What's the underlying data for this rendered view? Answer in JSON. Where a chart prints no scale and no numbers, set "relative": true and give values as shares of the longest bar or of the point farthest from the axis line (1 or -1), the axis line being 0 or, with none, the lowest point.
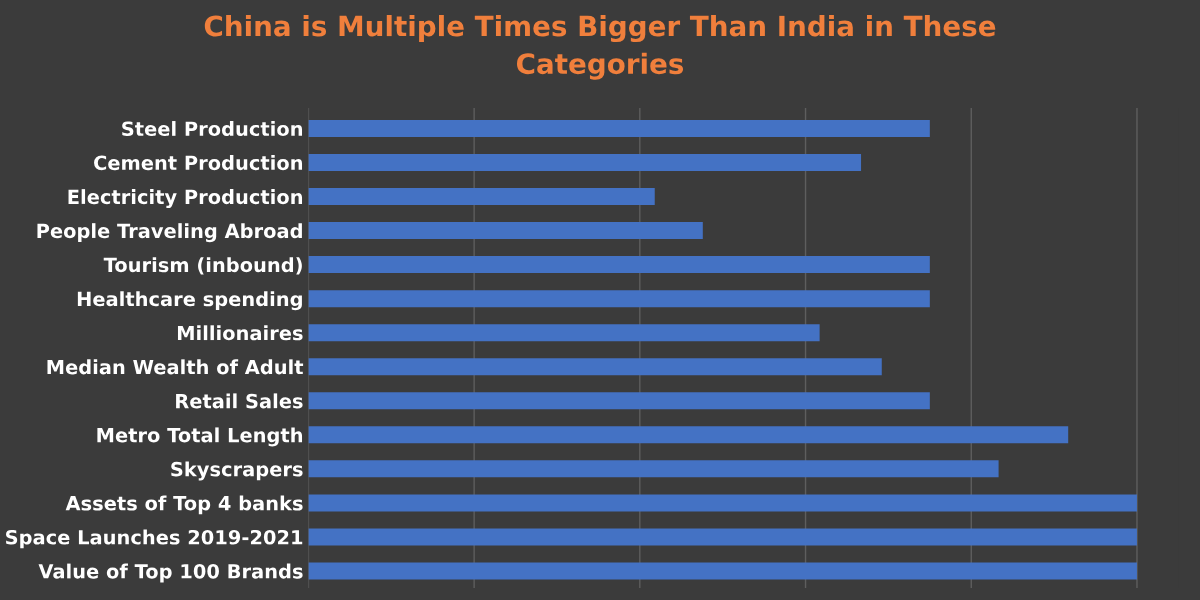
{
  "chart_data": {
    "type": "bar",
    "orientation": "horizontal",
    "relative": true,
    "title": "China is Multiple Times Bigger Than India in These\nCategories",
    "categories": [
      "Steel Production",
      "Cement Production",
      "Electricity Production",
      "People Traveling Abroad",
      "Tourism (inbound)",
      "Healthcare spending",
      "Millionaires",
      "Median Wealth of Adult",
      "Retail Sales",
      "Metro Total Length",
      "Skyscrapers",
      "Assets of Top 4 banks",
      "Space Launches 2019-2021",
      "Value of Top 100 Brands"
    ],
    "values": [
      0.75,
      0.667,
      0.418,
      0.476,
      0.75,
      0.75,
      0.617,
      0.692,
      0.75,
      0.917,
      0.833,
      1,
      1,
      1
    ],
    "color": "#4472c4",
    "grid": "x"
  }
}
